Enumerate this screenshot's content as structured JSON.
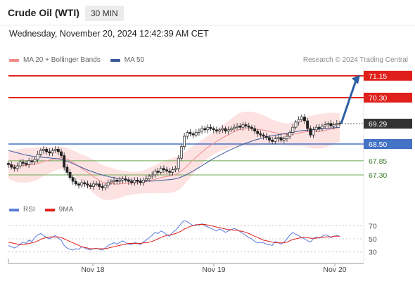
{
  "header": {
    "title": "Crude Oil (WTI)",
    "timeframe": "30 MIN",
    "datetime": "Wednesday, November 20, 2024 12:42:39 AM CET"
  },
  "legend": {
    "ma20_label": "MA 20 + Bollinger Bands",
    "ma50_label": "MA 50",
    "credit": "Research © 2024 Trading Central",
    "rsi_label": "RSI",
    "rsi_ma_label": "9MA"
  },
  "colors": {
    "resistance": "#e0201b",
    "support_strong": "#4472c4",
    "support_weak": "#6aa84f",
    "ma20": "#f08c8c",
    "ma50": "#3c5a99",
    "bollinger_fill": "#fde2e2",
    "candle": "#222222",
    "arrow": "#2e5fa3",
    "rsi": "#5b7bdc",
    "rsi_ma": "#e0201b"
  },
  "chart_data": [
    {
      "type": "candlestick",
      "x_ticks": [
        "Nov 18",
        "Nov 19",
        "Nov 20"
      ],
      "ylim": [
        66.4,
        71.5
      ],
      "levels": [
        {
          "label": "71.15",
          "value": 71.15,
          "kind": "resistance"
        },
        {
          "label": "70.30",
          "value": 70.3,
          "kind": "resistance"
        },
        {
          "label": "69.29",
          "value": 69.29,
          "kind": "last"
        },
        {
          "label": "68.50",
          "value": 68.5,
          "kind": "support_strong"
        },
        {
          "label": "67.85",
          "value": 67.85,
          "kind": "support_weak"
        },
        {
          "label": "67.30",
          "value": 67.3,
          "kind": "support_weak"
        }
      ],
      "close": [
        67.7,
        67.6,
        67.55,
        67.65,
        67.8,
        67.75,
        67.7,
        67.85,
        67.8,
        67.9,
        68.1,
        68.25,
        68.3,
        68.2,
        68.15,
        68.25,
        68.3,
        68.2,
        68.05,
        67.6,
        67.4,
        67.2,
        67.05,
        66.95,
        66.9,
        67.0,
        66.95,
        66.9,
        66.85,
        66.95,
        66.95,
        66.85,
        66.8,
        66.9,
        67.0,
        67.05,
        67.1,
        67.05,
        67.1,
        67.15,
        67.1,
        67.05,
        67.0,
        67.1,
        67.05,
        67.0,
        67.1,
        67.15,
        67.25,
        67.3,
        67.45,
        67.4,
        67.55,
        67.5,
        67.45,
        67.4,
        67.5,
        67.55,
        67.95,
        68.4,
        68.8,
        68.95,
        68.9,
        68.85,
        68.95,
        69.0,
        69.1,
        69.05,
        69.15,
        69.1,
        69.05,
        69.0,
        69.05,
        69.1,
        69.0,
        69.05,
        69.1,
        69.15,
        69.2,
        69.15,
        69.25,
        69.2,
        69.15,
        69.1,
        69.0,
        68.9,
        68.85,
        68.8,
        68.75,
        68.65,
        68.6,
        68.7,
        68.75,
        68.65,
        68.7,
        68.8,
        68.95,
        69.15,
        69.35,
        69.45,
        69.55,
        69.4,
        69.1,
        68.85,
        69.05,
        69.15,
        69.1,
        69.2,
        69.25,
        69.3,
        69.2,
        69.25,
        69.3,
        69.29
      ],
      "series": [
        {
          "name": "MA 20",
          "values": [
            67.7,
            67.68,
            67.66,
            67.65,
            67.66,
            67.67,
            67.67,
            67.69,
            67.7,
            67.72,
            67.74,
            67.79,
            67.82,
            67.85,
            67.87,
            67.9,
            67.92,
            67.94,
            67.96,
            67.94,
            67.91,
            67.86,
            67.79,
            67.71,
            67.63,
            67.55,
            67.48,
            67.4,
            67.32,
            67.24,
            67.16,
            67.09,
            67.02,
            66.99,
            66.97,
            66.96,
            66.95,
            66.94,
            66.95,
            66.96,
            66.97,
            66.98,
            66.98,
            66.99,
            67.0,
            67.01,
            67.03,
            67.05,
            67.08,
            67.1,
            67.13,
            67.16,
            67.19,
            67.22,
            67.24,
            67.26,
            67.29,
            67.32,
            67.37,
            67.45,
            67.55,
            67.66,
            67.77,
            67.88,
            67.99,
            68.09,
            68.19,
            68.28,
            68.37,
            68.45,
            68.53,
            68.6,
            68.67,
            68.74,
            68.8,
            68.86,
            68.92,
            68.98,
            69.03,
            69.07,
            69.08,
            69.09,
            69.09,
            69.09,
            69.08,
            69.07,
            69.06,
            69.04,
            69.02,
            68.99,
            68.96,
            68.94,
            68.92,
            68.9,
            68.88,
            68.87,
            68.87,
            68.88,
            68.9,
            68.92,
            68.95,
            68.97,
            68.98,
            68.97,
            68.97,
            68.98,
            68.99,
            69.01,
            69.03,
            69.06,
            69.08,
            69.1,
            69.12,
            69.14
          ]
        },
        {
          "name": "MA 50",
          "values": [
            68.25,
            68.22,
            68.19,
            68.16,
            68.13,
            68.1,
            68.07,
            68.05,
            68.03,
            68.01,
            68.0,
            67.99,
            67.98,
            67.97,
            67.96,
            67.95,
            67.94,
            67.92,
            67.9,
            67.87,
            67.83,
            67.79,
            67.74,
            67.69,
            67.64,
            67.59,
            67.54,
            67.49,
            67.45,
            67.41,
            67.37,
            67.33,
            67.3,
            67.27,
            67.24,
            67.21,
            67.19,
            67.17,
            67.15,
            67.13,
            67.12,
            67.11,
            67.1,
            67.09,
            67.08,
            67.07,
            67.06,
            67.06,
            67.06,
            67.06,
            67.07,
            67.08,
            67.09,
            67.1,
            67.11,
            67.12,
            67.13,
            67.15,
            67.18,
            67.22,
            67.27,
            67.33,
            67.39,
            67.45,
            67.52,
            67.59,
            67.66,
            67.73,
            67.8,
            67.87,
            67.94,
            68.0,
            68.06,
            68.12,
            68.18,
            68.24,
            68.29,
            68.34,
            68.39,
            68.44,
            68.49,
            68.53,
            68.57,
            68.61,
            68.65,
            68.68,
            68.71,
            68.74,
            68.77,
            68.8,
            68.82,
            68.84,
            68.86,
            68.88,
            68.9,
            68.92,
            68.94,
            68.96,
            68.98,
            69.0,
            69.02,
            69.03,
            69.04,
            69.05,
            69.06,
            69.07,
            69.08,
            69.09,
            69.1,
            69.11,
            69.12,
            69.13,
            69.14,
            69.15
          ]
        }
      ],
      "bollinger_width": 0.55
    },
    {
      "type": "line",
      "title": "RSI",
      "y_ticks": [
        70,
        50,
        30
      ],
      "ylim": [
        20,
        80
      ],
      "series": [
        {
          "name": "RSI",
          "values": [
            40,
            38,
            36,
            38,
            42,
            45,
            43,
            48,
            46,
            52,
            56,
            58,
            55,
            52,
            50,
            53,
            55,
            51,
            48,
            40,
            36,
            34,
            33,
            35,
            34,
            38,
            36,
            34,
            33,
            35,
            36,
            34,
            33,
            36,
            40,
            42,
            44,
            42,
            45,
            47,
            44,
            42,
            41,
            45,
            43,
            41,
            45,
            48,
            52,
            55,
            60,
            58,
            62,
            60,
            56,
            54,
            60,
            63,
            68,
            74,
            78,
            76,
            73,
            70,
            72,
            71,
            73,
            70,
            68,
            66,
            64,
            62,
            65,
            63,
            60,
            62,
            64,
            66,
            64,
            61,
            58,
            55,
            52,
            50,
            46,
            44,
            45,
            44,
            42,
            41,
            40,
            46,
            44,
            42,
            45,
            50,
            56,
            60,
            57,
            55,
            52,
            50,
            47,
            45,
            50,
            53,
            51,
            54,
            56,
            55,
            52,
            54,
            55,
            54
          ]
        },
        {
          "name": "9MA",
          "values": [
            45,
            44,
            43,
            42,
            41,
            41,
            42,
            43,
            44,
            45,
            47,
            49,
            51,
            52,
            53,
            53,
            53,
            53,
            52,
            50,
            48,
            46,
            44,
            42,
            40,
            38,
            37,
            36,
            35,
            35,
            35,
            35,
            35,
            35,
            36,
            37,
            38,
            39,
            40,
            41,
            42,
            43,
            43,
            43,
            43,
            43,
            44,
            44,
            45,
            46,
            48,
            50,
            52,
            54,
            55,
            56,
            57,
            58,
            60,
            62,
            65,
            67,
            69,
            70,
            71,
            72,
            72,
            72,
            71,
            70,
            69,
            68,
            67,
            66,
            65,
            64,
            64,
            63,
            63,
            62,
            61,
            60,
            58,
            56,
            54,
            52,
            50,
            48,
            47,
            46,
            45,
            44,
            44,
            44,
            44,
            45,
            47,
            49,
            50,
            51,
            52,
            52,
            52,
            51,
            51,
            51,
            52,
            52,
            53,
            53,
            53,
            54,
            54,
            54
          ]
        }
      ]
    }
  ]
}
